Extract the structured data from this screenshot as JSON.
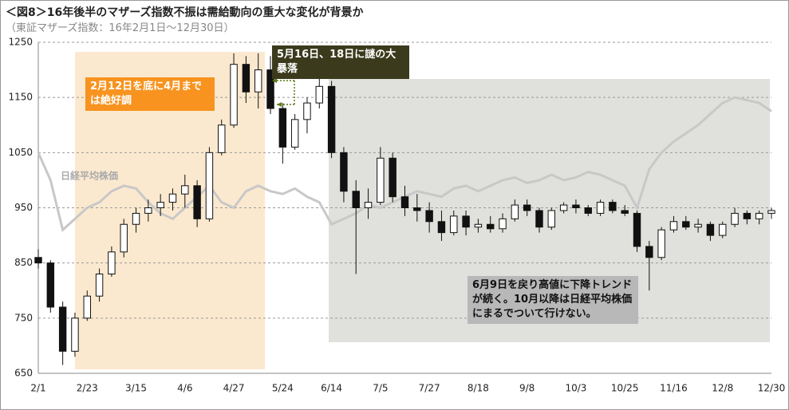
{
  "chart_data": {
    "type": "candlestick",
    "title": "＜図8＞16年後半のマザーズ指数不振は需給動向の重大な変化が背景か",
    "subtitle": "（東証マザーズ指数：16年2月1日～12月30日）",
    "categories": [
      "2/1",
      null,
      null,
      null,
      "2/23",
      null,
      null,
      null,
      "3/15",
      null,
      null,
      null,
      "4/6",
      null,
      null,
      null,
      "4/27",
      null,
      null,
      null,
      "5/24",
      null,
      null,
      null,
      "6/14",
      null,
      null,
      null,
      "7/5",
      null,
      null,
      null,
      "7/27",
      null,
      null,
      null,
      "8/18",
      null,
      null,
      null,
      "9/8",
      null,
      null,
      null,
      "10/3",
      null,
      null,
      null,
      "10/25",
      null,
      null,
      null,
      "11/16",
      null,
      null,
      null,
      "12/8",
      null,
      null,
      null,
      "12/30"
    ],
    "ylim": [
      650,
      1250
    ],
    "yticks": [
      650,
      750,
      850,
      950,
      1050,
      1150,
      1250
    ],
    "grid": true,
    "candles": {
      "up_color": "#ffffff",
      "down_color": "#111111",
      "open": [
        860,
        850,
        770,
        690,
        750,
        790,
        830,
        870,
        920,
        940,
        950,
        960,
        975,
        990,
        930,
        1050,
        1100,
        1210,
        1160,
        1200,
        1130,
        1060,
        1110,
        1140,
        1170,
        1050,
        980,
        950,
        960,
        1040,
        970,
        950,
        945,
        925,
        905,
        935,
        915,
        920,
        912,
        930,
        955,
        945,
        915,
        945,
        955,
        950,
        940,
        960,
        945,
        940,
        880,
        860,
        910,
        925,
        915,
        920,
        900,
        920,
        940,
        930,
        940
      ],
      "high": [
        875,
        855,
        780,
        760,
        800,
        840,
        880,
        930,
        950,
        965,
        975,
        985,
        1010,
        1000,
        1060,
        1110,
        1230,
        1225,
        1230,
        1225,
        1140,
        1120,
        1150,
        1185,
        1180,
        1060,
        1000,
        985,
        1060,
        1050,
        990,
        975,
        960,
        945,
        945,
        945,
        930,
        935,
        940,
        965,
        965,
        950,
        950,
        960,
        965,
        955,
        965,
        965,
        955,
        945,
        890,
        915,
        935,
        935,
        930,
        925,
        925,
        950,
        945,
        945,
        950
      ],
      "low": [
        840,
        760,
        665,
        680,
        745,
        780,
        825,
        860,
        905,
        925,
        935,
        945,
        950,
        915,
        925,
        1045,
        1095,
        1140,
        1130,
        1120,
        1030,
        1055,
        1085,
        1130,
        1040,
        960,
        830,
        930,
        955,
        960,
        935,
        925,
        905,
        890,
        900,
        900,
        905,
        905,
        905,
        925,
        935,
        905,
        910,
        940,
        940,
        935,
        935,
        940,
        935,
        870,
        800,
        855,
        905,
        910,
        905,
        890,
        895,
        915,
        920,
        920,
        930
      ],
      "close": [
        850,
        770,
        690,
        750,
        790,
        830,
        870,
        920,
        940,
        950,
        960,
        975,
        990,
        930,
        1050,
        1100,
        1210,
        1160,
        1200,
        1130,
        1060,
        1110,
        1140,
        1170,
        1050,
        980,
        950,
        960,
        1040,
        970,
        950,
        945,
        925,
        905,
        935,
        915,
        920,
        912,
        930,
        955,
        945,
        915,
        945,
        955,
        950,
        940,
        960,
        945,
        940,
        880,
        860,
        910,
        925,
        915,
        920,
        900,
        920,
        940,
        930,
        940,
        945
      ]
    },
    "series": [
      {
        "name": "日経平均株価",
        "color": "#c8c8c8",
        "values": [
          1050,
          1000,
          910,
          930,
          950,
          960,
          980,
          990,
          985,
          960,
          940,
          930,
          950,
          970,
          990,
          960,
          950,
          980,
          990,
          980,
          975,
          985,
          970,
          960,
          920,
          930,
          940,
          955,
          950,
          960,
          970,
          980,
          975,
          970,
          985,
          990,
          980,
          990,
          1000,
          1005,
          995,
          1000,
          1010,
          1000,
          1005,
          1015,
          1010,
          1000,
          990,
          950,
          1020,
          1050,
          1070,
          1085,
          1100,
          1120,
          1140,
          1150,
          1145,
          1140,
          1125
        ]
      }
    ],
    "annotations": [
      "2月12日を底に4月までは絶好調",
      "5月16日、18日に謎の大暴落",
      "6月9日を戻り高値に下降トレンドが続く。10月以降は日経平均株価にまるでついて行けない。"
    ]
  }
}
